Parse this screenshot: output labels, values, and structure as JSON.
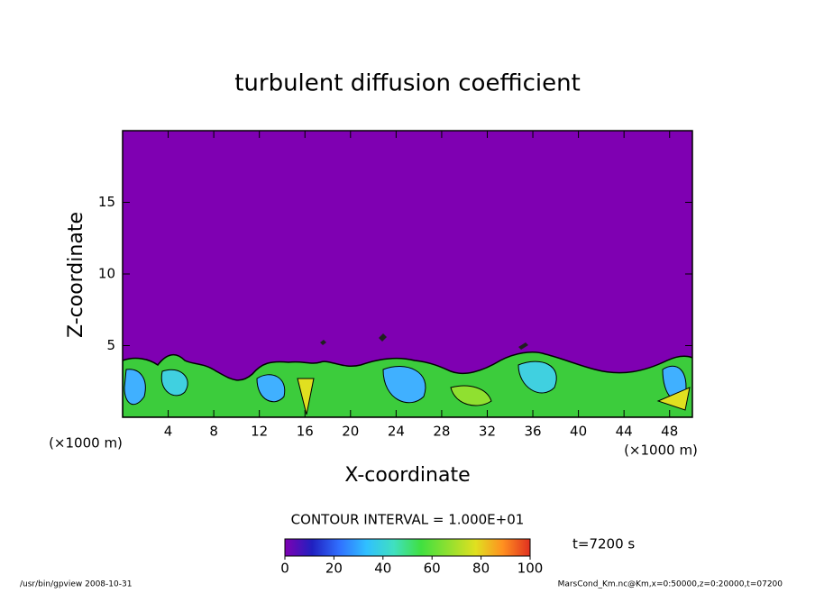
{
  "chart_data": {
    "type": "contour",
    "title": "turbulent diffusion coefficient",
    "xlabel": "X-coordinate",
    "ylabel": "Z-coordinate",
    "xunit": "(×1000 m)",
    "yunit": "(×1000 m)",
    "xlim": [
      0,
      50
    ],
    "ylim": [
      0,
      20
    ],
    "xticks": [
      4,
      8,
      12,
      16,
      20,
      24,
      28,
      32,
      36,
      40,
      44,
      48
    ],
    "yticks": [
      5,
      10,
      15
    ],
    "background_color": "#7f00b2",
    "contour_interval_label": "CONTOUR INTERVAL = 1.000E+01",
    "time_label": "t=7200 s",
    "colorbar": {
      "lim": [
        0,
        100
      ],
      "ticks": [
        0,
        20,
        40,
        60,
        80,
        100
      ],
      "colors": [
        "#7f00b2",
        "#2020c0",
        "#3070ff",
        "#30c0ff",
        "#40e0c0",
        "#40e040",
        "#90e030",
        "#e0e020",
        "#ff9020",
        "#e03020"
      ]
    }
  },
  "footer": {
    "left": "/usr/bin/gpview  2008-10-31",
    "right": "MarsCond_Km.nc@Km,x=0:50000,z=0:20000,t=07200"
  }
}
